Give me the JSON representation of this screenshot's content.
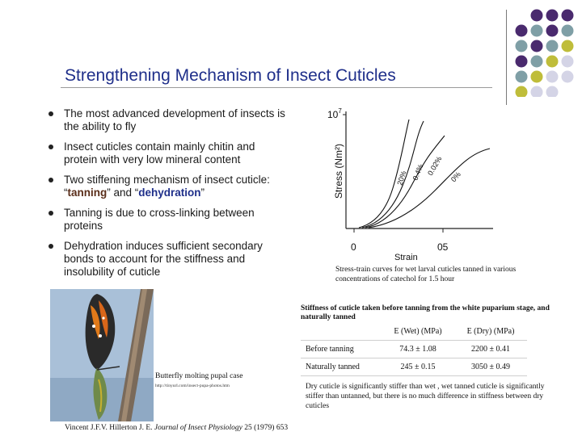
{
  "slide": {
    "title": "Strengthening Mechanism of Insect Cuticles",
    "bullets": [
      "The most advanced development of insects is the ability to fly",
      "Insect cuticles contain mainly chitin and protein with very low mineral content",
      "Two stiffening mechanism of insect cuticle:",
      "Tanning is due to cross-linking between proteins",
      "Dehydration induces sufficient secondary bonds to account for the stiffness and insolubility of cuticle"
    ],
    "bullet3_terms": {
      "q1": "“",
      "tanning": "tanning",
      "mid": "” and “",
      "dehydration": "dehydration",
      "q2": "”"
    },
    "accent_colors": {
      "title": "#1f2f8a",
      "tanning": "#5a2e1a",
      "dehydration": "#1f2f8a"
    },
    "decor_dot_colors": [
      "#4a2a6e",
      "#7f9fa6",
      "#bfbd3a",
      "#d4d4e6"
    ]
  },
  "chart_data": {
    "type": "line",
    "ylabel": "Stress (Nm²)",
    "xlabel": "Strain",
    "y_top_label_base": "10",
    "y_top_label_exp": "7",
    "x_ticks": [
      "0",
      "05"
    ],
    "series": [
      {
        "name": "20%"
      },
      {
        "name": "0.4%"
      },
      {
        "name": "0.02%"
      },
      {
        "name": "0%"
      }
    ]
  },
  "captions": {
    "chart_caption": "Stress-train curves for wet larval cuticles tanned in various concentrations of catechol for 1.5 hour",
    "table_caption": "Stiffness of cuticle taken before tanning from the white puparium stage, and naturally tanned",
    "conclusion": "Dry cuticle is significantly stiffer than wet , wet tanned cuticle is significantly stiffer than untanned, but there is no much difference in stiffness between dry cuticles",
    "photo_caption": "Butterfly molting pupal case",
    "photo_url": "http://tinyurl.com/insect-pupa-photos.htm",
    "reference_plain": "Vincent J.F.V. Hillerton J. E. ",
    "reference_journal": "Journal of Insect Physiology",
    "reference_tail": " 25 (1979) 653"
  },
  "table": {
    "headers": [
      "",
      "E (Wet) (MPa)",
      "E (Dry) (MPa)"
    ],
    "rows": [
      [
        "Before tanning",
        "74.3 ± 1.08",
        "2200 ± 0.41"
      ],
      [
        "Naturally tanned",
        "245 ± 0.15",
        "3050 ± 0.49"
      ]
    ]
  }
}
